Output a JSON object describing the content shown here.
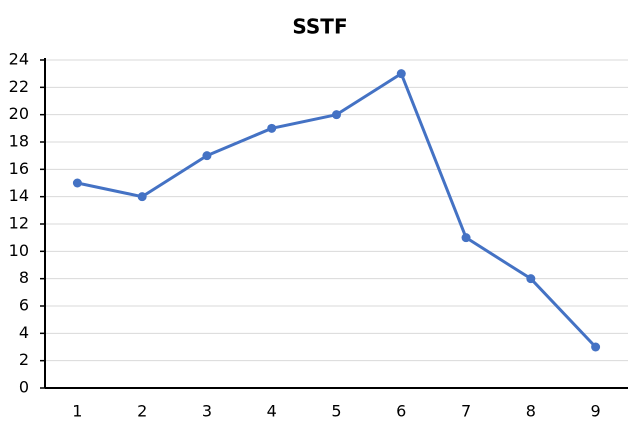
{
  "chart_data": {
    "type": "line",
    "title": "SSTF",
    "categories": [
      "1",
      "2",
      "3",
      "4",
      "5",
      "6",
      "7",
      "8",
      "9"
    ],
    "values": [
      15,
      14,
      17,
      19,
      20,
      23,
      11,
      8,
      3
    ],
    "color": "#4472c4",
    "ylim": [
      0,
      24
    ],
    "yticks": [
      0,
      2,
      4,
      6,
      8,
      10,
      12,
      14,
      16,
      18,
      20,
      22,
      24
    ],
    "grid": true
  }
}
